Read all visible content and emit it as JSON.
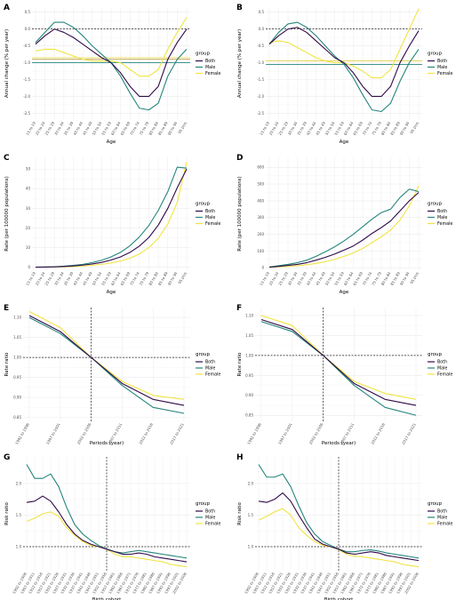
{
  "legend": {
    "title": "group",
    "entries": [
      {
        "name": "Both",
        "color": "#300a4a"
      },
      {
        "name": "Male",
        "color": "#24857c"
      },
      {
        "name": "Female",
        "color": "#f0e442"
      }
    ]
  },
  "colors": {
    "Both": "#300a4a",
    "Male": "#24857c",
    "Female": "#f0e442",
    "grid": "#ebebeb",
    "hline_Both": "#b58a2d",
    "hline_Male": "#24857c",
    "hline_Female": "#e9d94a"
  },
  "chart_data": [
    {
      "panel": "A",
      "type": "line",
      "xlabel": "Age",
      "ylabel": "Annual change (% per year)",
      "categories": [
        "15 to 19",
        "20 to 24",
        "25 to 29",
        "30 to 34",
        "35 to 39",
        "40 to 44",
        "45 to 49",
        "50 to 54",
        "55 to 59",
        "60 to 64",
        "65 to 69",
        "70 to 74",
        "75 to 79",
        "80 to 84",
        "85 to 89",
        "90 to 94",
        "95 plus"
      ],
      "yticks": [
        0.5,
        0.0,
        -0.5,
        -1.0,
        -1.5,
        -2.0,
        -2.5
      ],
      "ylim": [
        -2.7,
        0.65
      ],
      "ref_line": 0,
      "hlines": [
        {
          "group": "Both",
          "value": -0.9
        },
        {
          "group": "Male",
          "value": -1.0
        },
        {
          "group": "Female",
          "value": -0.85
        }
      ],
      "series": [
        {
          "name": "Both",
          "values": [
            -0.45,
            -0.2,
            0.0,
            -0.1,
            -0.25,
            -0.45,
            -0.65,
            -0.85,
            -1.0,
            -1.3,
            -1.7,
            -2.0,
            -2.0,
            -1.7,
            -0.9,
            -0.4,
            0.0
          ]
        },
        {
          "name": "Male",
          "values": [
            -0.4,
            -0.1,
            0.2,
            0.2,
            0.05,
            -0.2,
            -0.5,
            -0.75,
            -1.0,
            -1.4,
            -1.9,
            -2.35,
            -2.4,
            -2.2,
            -1.4,
            -0.9,
            -0.6
          ]
        },
        {
          "name": "Female",
          "values": [
            -0.65,
            -0.6,
            -0.6,
            -0.7,
            -0.8,
            -0.9,
            -0.95,
            -0.95,
            -0.95,
            -1.0,
            -1.2,
            -1.4,
            -1.4,
            -1.2,
            -0.6,
            -0.1,
            0.35
          ]
        }
      ]
    },
    {
      "panel": "B",
      "type": "line",
      "xlabel": "Age",
      "ylabel": "Annual change (% per year)",
      "categories": [
        "15 to 19",
        "20 to 24",
        "25 to 29",
        "30 to 34",
        "35 to 39",
        "40 to 44",
        "45 to 49",
        "50 to 54",
        "55 to 59",
        "60 to 64",
        "65 to 69",
        "70 to 74",
        "75 to 79",
        "80 to 84",
        "85 to 89",
        "90 to 94",
        "95 plus"
      ],
      "yticks": [
        0.5,
        0.0,
        -0.5,
        -1.0,
        -1.5,
        -2.0,
        -2.5
      ],
      "ylim": [
        -2.7,
        0.65
      ],
      "ref_line": 0,
      "hlines": [
        {
          "group": "Both",
          "value": -0.95
        },
        {
          "group": "Male",
          "value": -1.05
        },
        {
          "group": "Female",
          "value": -0.95
        }
      ],
      "series": [
        {
          "name": "Both",
          "values": [
            -0.45,
            -0.2,
            0.0,
            0.05,
            -0.1,
            -0.35,
            -0.6,
            -0.85,
            -1.0,
            -1.3,
            -1.7,
            -2.0,
            -2.0,
            -1.7,
            -1.0,
            -0.5,
            -0.05
          ]
        },
        {
          "name": "Male",
          "values": [
            -0.45,
            -0.1,
            0.15,
            0.2,
            0.05,
            -0.2,
            -0.5,
            -0.8,
            -1.05,
            -1.45,
            -1.95,
            -2.4,
            -2.45,
            -2.2,
            -1.55,
            -1.0,
            -0.6
          ]
        },
        {
          "name": "Female",
          "values": [
            -0.4,
            -0.35,
            -0.4,
            -0.55,
            -0.7,
            -0.85,
            -0.95,
            -1.0,
            -1.0,
            -1.1,
            -1.25,
            -1.45,
            -1.45,
            -1.2,
            -0.6,
            0.0,
            0.6
          ]
        }
      ]
    },
    {
      "panel": "C",
      "type": "line",
      "xlabel": "Age",
      "ylabel": "Rate (per 100000 populations)",
      "categories": [
        "15 to 19",
        "20 to 24",
        "25 to 29",
        "30 to 34",
        "35 to 39",
        "40 to 44",
        "45 to 49",
        "50 to 54",
        "55 to 59",
        "60 to 64",
        "65 to 69",
        "70 to 74",
        "75 to 79",
        "80 to 84",
        "85 to 89",
        "90 to 94",
        "95 plus"
      ],
      "yticks": [
        0,
        10,
        20,
        30,
        40,
        50
      ],
      "ylim": [
        -1.5,
        56
      ],
      "series": [
        {
          "name": "Both",
          "values": [
            0.05,
            0.1,
            0.2,
            0.4,
            0.7,
            1.1,
            1.7,
            2.5,
            3.7,
            5.3,
            7.6,
            10.8,
            15.2,
            21.5,
            30.0,
            40.5,
            50.0
          ]
        },
        {
          "name": "Male",
          "values": [
            0.06,
            0.13,
            0.3,
            0.55,
            0.95,
            1.5,
            2.4,
            3.6,
            5.3,
            7.6,
            11.0,
            15.5,
            21.3,
            29.0,
            38.5,
            51.0,
            50.5
          ]
        },
        {
          "name": "Female",
          "values": [
            0.03,
            0.06,
            0.12,
            0.22,
            0.4,
            0.65,
            1.0,
            1.5,
            2.2,
            3.2,
            4.6,
            6.8,
            10.0,
            14.8,
            22.0,
            33.0,
            53.5
          ]
        }
      ]
    },
    {
      "panel": "D",
      "type": "line",
      "xlabel": "Age",
      "ylabel": "Rate (per 100000 populations)",
      "categories": [
        "15 to 19",
        "20 to 24",
        "25 to 29",
        "30 to 34",
        "35 to 39",
        "40 to 44",
        "45 to 49",
        "50 to 54",
        "55 to 59",
        "60 to 64",
        "65 to 69",
        "70 to 74",
        "75 to 79",
        "80 to 84",
        "85 to 89",
        "90 to 94",
        "95 plus"
      ],
      "yticks": [
        0,
        100,
        200,
        300,
        400,
        500,
        600
      ],
      "ylim": [
        -15,
        660
      ],
      "series": [
        {
          "name": "Both",
          "values": [
            3,
            8,
            14,
            20,
            30,
            45,
            62,
            82,
            105,
            130,
            165,
            205,
            240,
            280,
            340,
            400,
            450
          ]
        },
        {
          "name": "Male",
          "values": [
            4,
            12,
            20,
            30,
            45,
            68,
            95,
            125,
            160,
            200,
            245,
            290,
            330,
            350,
            420,
            470,
            455
          ]
        },
        {
          "name": "Female",
          "values": [
            2,
            5,
            8,
            12,
            18,
            26,
            36,
            50,
            68,
            88,
            115,
            150,
            185,
            225,
            285,
            370,
            490
          ]
        }
      ]
    },
    {
      "panel": "E",
      "type": "line",
      "xlabel": "Periods (year)",
      "ylabel": "Rate ratio",
      "categories": [
        "1992 to 1996",
        "1997 to 2001",
        "2002 to 2006",
        "2007 to 2011",
        "2012 to 2016",
        "2017 to 2021"
      ],
      "yticks": [
        1.1,
        1.05,
        1.0,
        0.95,
        0.9,
        0.85
      ],
      "ylim": [
        0.84,
        1.125
      ],
      "ref_line": 1.0,
      "ref_vline": "2002 to 2006",
      "series": [
        {
          "name": "Both",
          "values": [
            1.105,
            1.065,
            1.0,
            0.935,
            0.895,
            0.88
          ]
        },
        {
          "name": "Male",
          "values": [
            1.1,
            1.06,
            1.0,
            0.93,
            0.875,
            0.86
          ]
        },
        {
          "name": "Female",
          "values": [
            1.115,
            1.075,
            1.0,
            0.94,
            0.905,
            0.895
          ]
        }
      ]
    },
    {
      "panel": "F",
      "type": "line",
      "xlabel": "Periods (year)",
      "ylabel": "Rate ratio",
      "categories": [
        "1992 to 1996",
        "1997 to 2001",
        "2002 to 2006",
        "2007 to 2011",
        "2012 to 2016",
        "2017 to 2021"
      ],
      "yticks": [
        1.1,
        1.05,
        1.0,
        0.95,
        0.9,
        0.85
      ],
      "ylim": [
        0.835,
        1.12
      ],
      "ref_line": 1.0,
      "ref_vline": "2002 to 2006",
      "series": [
        {
          "name": "Both",
          "values": [
            1.09,
            1.065,
            1.0,
            0.93,
            0.89,
            0.875
          ]
        },
        {
          "name": "Male",
          "values": [
            1.085,
            1.06,
            1.0,
            0.925,
            0.87,
            0.85
          ]
        },
        {
          "name": "Female",
          "values": [
            1.1,
            1.075,
            1.0,
            0.935,
            0.905,
            0.89
          ]
        }
      ]
    },
    {
      "panel": "G",
      "type": "line",
      "xlabel": "Birth cohort",
      "ylabel": "Risk ratio",
      "categories": [
        "1902 to 1906",
        "1907 to 1911",
        "1912 to 1916",
        "1917 to 1921",
        "1922 to 1926",
        "1927 to 1931",
        "1932 to 1936",
        "1937 to 1941",
        "1942 to 1946",
        "1947 to 1951",
        "1952 to 1956",
        "1957 to 1961",
        "1962 to 1966",
        "1967 to 1971",
        "1972 to 1976",
        "1977 to 1981",
        "1982 to 1986",
        "1987 to 1991",
        "1992 to 1996",
        "1997 to 2001",
        "2002 to 2006"
      ],
      "yticks": [
        2.0,
        1.5,
        1.0
      ],
      "ylim": [
        0.62,
        2.42
      ],
      "ref_line": 1.0,
      "ref_vline": "1952 to 1956",
      "series": [
        {
          "name": "Both",
          "values": [
            1.7,
            1.72,
            1.8,
            1.72,
            1.55,
            1.35,
            1.2,
            1.1,
            1.04,
            1.0,
            0.96,
            0.92,
            0.88,
            0.88,
            0.9,
            0.88,
            0.84,
            0.82,
            0.8,
            0.78,
            0.76
          ]
        },
        {
          "name": "Male",
          "values": [
            2.3,
            2.08,
            2.08,
            2.15,
            1.95,
            1.62,
            1.35,
            1.2,
            1.1,
            1.02,
            0.96,
            0.92,
            0.9,
            0.92,
            0.94,
            0.92,
            0.9,
            0.88,
            0.86,
            0.84,
            0.82
          ]
        },
        {
          "name": "Female",
          "values": [
            1.4,
            1.45,
            1.52,
            1.55,
            1.48,
            1.3,
            1.18,
            1.08,
            1.02,
            1.0,
            0.96,
            0.88,
            0.84,
            0.84,
            0.82,
            0.8,
            0.78,
            0.76,
            0.72,
            0.7,
            0.68
          ]
        }
      ]
    },
    {
      "panel": "H",
      "type": "line",
      "xlabel": "Birth cohort",
      "ylabel": "Risk ratio",
      "categories": [
        "1902 to 1906",
        "1907 to 1911",
        "1912 to 1916",
        "1917 to 1921",
        "1922 to 1926",
        "1927 to 1931",
        "1932 to 1936",
        "1937 to 1941",
        "1942 to 1946",
        "1947 to 1951",
        "1952 to 1956",
        "1957 to 1961",
        "1962 to 1966",
        "1967 to 1971",
        "1972 to 1976",
        "1977 to 1981",
        "1982 to 1986",
        "1987 to 1991",
        "1992 to 1996",
        "1997 to 2001",
        "2002 to 2006"
      ],
      "yticks": [
        2.0,
        1.5,
        1.0
      ],
      "ylim": [
        0.62,
        2.42
      ],
      "ref_line": 1.0,
      "ref_vline": "1952 to 1956",
      "series": [
        {
          "name": "Both",
          "values": [
            1.72,
            1.7,
            1.75,
            1.85,
            1.72,
            1.5,
            1.3,
            1.12,
            1.04,
            1.0,
            0.96,
            0.9,
            0.88,
            0.9,
            0.92,
            0.9,
            0.86,
            0.84,
            0.82,
            0.8,
            0.78
          ]
        },
        {
          "name": "Male",
          "values": [
            2.3,
            2.1,
            2.1,
            2.15,
            1.95,
            1.65,
            1.38,
            1.2,
            1.08,
            1.02,
            0.96,
            0.92,
            0.92,
            0.94,
            0.95,
            0.93,
            0.9,
            0.88,
            0.86,
            0.84,
            0.82
          ]
        },
        {
          "name": "Female",
          "values": [
            1.42,
            1.48,
            1.55,
            1.6,
            1.5,
            1.3,
            1.18,
            1.08,
            1.02,
            1.0,
            0.95,
            0.88,
            0.85,
            0.84,
            0.82,
            0.8,
            0.78,
            0.76,
            0.72,
            0.7,
            0.68
          ]
        }
      ]
    }
  ]
}
